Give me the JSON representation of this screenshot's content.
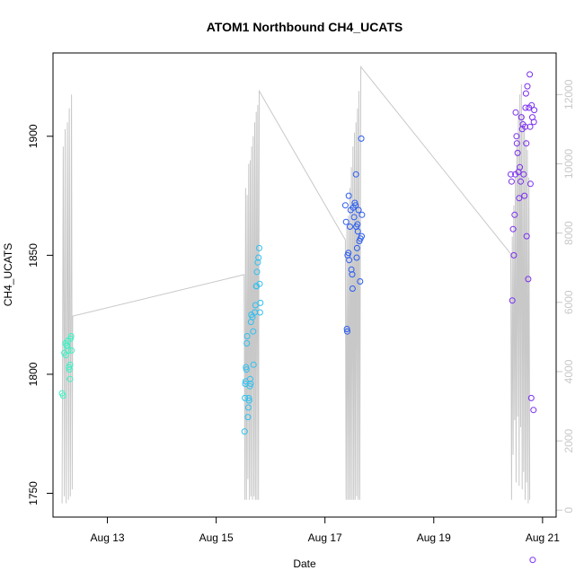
{
  "chart_data": {
    "type": "scatter",
    "title": "ATOM1 Northbound CH4_UCATS",
    "xlabel": "Date",
    "ylabel": "CH4_UCATS",
    "xlim": [
      "2016-08-12T00:00",
      "2016-08-21T06:00"
    ],
    "ylim": [
      1740,
      1935
    ],
    "x_ticks": [
      {
        "t": "2016-08-13T00:00",
        "label": "Aug 13"
      },
      {
        "t": "2016-08-15T00:00",
        "label": "Aug 15"
      },
      {
        "t": "2016-08-17T00:00",
        "label": "Aug 17"
      },
      {
        "t": "2016-08-19T00:00",
        "label": "Aug 19"
      },
      {
        "t": "2016-08-21T00:00",
        "label": "Aug 21"
      }
    ],
    "y_ticks": [
      1750,
      1800,
      1850,
      1900
    ],
    "right_axis": {
      "ylim": [
        -200,
        13200
      ],
      "ticks": [
        0,
        2000,
        4000,
        6000,
        8000,
        10000,
        12000
      ],
      "color": "#c8c8c8"
    },
    "altitude_line_color": "#c8c8c8",
    "series": [
      {
        "color": "#3ef2c4",
        "points": [
          [
            "2016-08-12T04:00",
            1792
          ],
          [
            "2016-08-12T04:30",
            1791
          ],
          [
            "2016-08-12T05:00",
            1809
          ],
          [
            "2016-08-12T05:30",
            1813
          ],
          [
            "2016-08-12T05:40",
            1808
          ],
          [
            "2016-08-12T06:00",
            1812
          ],
          [
            "2016-08-12T06:30",
            1814
          ],
          [
            "2016-08-12T06:45",
            1810
          ],
          [
            "2016-08-12T07:00",
            1803
          ],
          [
            "2016-08-12T07:15",
            1802
          ],
          [
            "2016-08-12T07:30",
            1798
          ],
          [
            "2016-08-12T07:45",
            1815
          ],
          [
            "2016-08-12T08:00",
            1816
          ],
          [
            "2016-08-12T08:10",
            1810
          ],
          [
            "2016-08-12T07:35",
            1804
          ],
          [
            "2016-08-12T06:15",
            1812
          ]
        ]
      },
      {
        "color": "#2ec0f0",
        "points": [
          [
            "2016-08-15T12:30",
            1776
          ],
          [
            "2016-08-15T12:40",
            1790
          ],
          [
            "2016-08-15T12:50",
            1796
          ],
          [
            "2016-08-15T13:00",
            1797
          ],
          [
            "2016-08-15T13:10",
            1803
          ],
          [
            "2016-08-15T13:20",
            1802
          ],
          [
            "2016-08-15T13:30",
            1813
          ],
          [
            "2016-08-15T13:40",
            1816
          ],
          [
            "2016-08-15T14:00",
            1782
          ],
          [
            "2016-08-15T14:10",
            1786
          ],
          [
            "2016-08-15T14:20",
            1790
          ],
          [
            "2016-08-15T14:30",
            1789
          ],
          [
            "2016-08-15T14:50",
            1795
          ],
          [
            "2016-08-15T15:00",
            1798
          ],
          [
            "2016-08-15T15:10",
            1796
          ],
          [
            "2016-08-15T15:20",
            1822
          ],
          [
            "2016-08-15T15:30",
            1825
          ],
          [
            "2016-08-15T16:00",
            1824
          ],
          [
            "2016-08-15T16:20",
            1818
          ],
          [
            "2016-08-15T16:30",
            1804
          ],
          [
            "2016-08-15T17:00",
            1826
          ],
          [
            "2016-08-15T17:20",
            1829
          ],
          [
            "2016-08-15T17:40",
            1837
          ],
          [
            "2016-08-15T18:00",
            1843
          ],
          [
            "2016-08-15T18:20",
            1847
          ],
          [
            "2016-08-15T18:40",
            1849
          ],
          [
            "2016-08-15T19:00",
            1853
          ],
          [
            "2016-08-15T19:10",
            1838
          ],
          [
            "2016-08-15T19:20",
            1826
          ],
          [
            "2016-08-15T19:30",
            1830
          ],
          [
            "2016-08-15T17:50",
            1837
          ]
        ]
      },
      {
        "color": "#2a5cf0",
        "points": [
          [
            "2016-08-17T09:00",
            1871
          ],
          [
            "2016-08-17T09:20",
            1864
          ],
          [
            "2016-08-17T09:40",
            1819
          ],
          [
            "2016-08-17T09:50",
            1818
          ],
          [
            "2016-08-17T10:00",
            1850
          ],
          [
            "2016-08-17T10:20",
            1851
          ],
          [
            "2016-08-17T10:30",
            1875
          ],
          [
            "2016-08-17T10:40",
            1848
          ],
          [
            "2016-08-17T11:00",
            1862
          ],
          [
            "2016-08-17T11:20",
            1869
          ],
          [
            "2016-08-17T11:40",
            1844
          ],
          [
            "2016-08-17T12:00",
            1842
          ],
          [
            "2016-08-17T12:10",
            1836
          ],
          [
            "2016-08-17T12:30",
            1870
          ],
          [
            "2016-08-17T12:50",
            1866
          ],
          [
            "2016-08-17T13:10",
            1872
          ],
          [
            "2016-08-17T13:30",
            1871
          ],
          [
            "2016-08-17T13:40",
            1884
          ],
          [
            "2016-08-17T13:50",
            1862
          ],
          [
            "2016-08-17T14:10",
            1853
          ],
          [
            "2016-08-17T14:20",
            1863
          ],
          [
            "2016-08-17T14:30",
            1860
          ],
          [
            "2016-08-17T14:50",
            1869
          ],
          [
            "2016-08-17T15:10",
            1856
          ],
          [
            "2016-08-17T15:30",
            1839
          ],
          [
            "2016-08-17T15:40",
            1857
          ],
          [
            "2016-08-17T16:00",
            1899
          ],
          [
            "2016-08-17T16:20",
            1867
          ],
          [
            "2016-08-17T16:10",
            1858
          ],
          [
            "2016-08-17T14:00",
            1849
          ]
        ]
      },
      {
        "color": "#7a2ef0",
        "points": [
          [
            "2016-08-20T10:00",
            1884
          ],
          [
            "2016-08-20T10:20",
            1881
          ],
          [
            "2016-08-20T10:40",
            1831
          ],
          [
            "2016-08-20T11:00",
            1861
          ],
          [
            "2016-08-20T11:20",
            1850
          ],
          [
            "2016-08-20T11:40",
            1867
          ],
          [
            "2016-08-20T12:00",
            1884
          ],
          [
            "2016-08-20T12:10",
            1910
          ],
          [
            "2016-08-20T12:30",
            1900
          ],
          [
            "2016-08-20T12:40",
            1897
          ],
          [
            "2016-08-20T13:00",
            1893
          ],
          [
            "2016-08-20T13:20",
            1885
          ],
          [
            "2016-08-20T13:40",
            1874
          ],
          [
            "2016-08-20T14:00",
            1887
          ],
          [
            "2016-08-20T14:20",
            1881
          ],
          [
            "2016-08-20T14:40",
            1908
          ],
          [
            "2016-08-20T15:00",
            1903
          ],
          [
            "2016-08-20T15:20",
            1905
          ],
          [
            "2016-08-20T15:40",
            1884
          ],
          [
            "2016-08-20T16:00",
            1875
          ],
          [
            "2016-08-20T16:20",
            1904
          ],
          [
            "2016-08-20T16:30",
            1912
          ],
          [
            "2016-08-20T16:40",
            1918
          ],
          [
            "2016-08-20T16:50",
            1897
          ],
          [
            "2016-08-20T17:00",
            1858
          ],
          [
            "2016-08-20T17:20",
            1921
          ],
          [
            "2016-08-20T17:40",
            1840
          ],
          [
            "2016-08-20T18:00",
            1912
          ],
          [
            "2016-08-20T18:20",
            1926
          ],
          [
            "2016-08-20T18:40",
            1880
          ],
          [
            "2016-08-20T19:00",
            1790
          ],
          [
            "2016-08-20T19:10",
            1913
          ],
          [
            "2016-08-20T19:30",
            1908
          ],
          [
            "2016-08-20T19:40",
            1722
          ],
          [
            "2016-08-20T20:00",
            1785
          ],
          [
            "2016-08-20T20:10",
            1906
          ],
          [
            "2016-08-20T20:20",
            1911
          ],
          [
            "2016-08-20T18:30",
            1904
          ]
        ]
      }
    ],
    "altitude_profile": [
      [
        "2016-08-12T04:00",
        200
      ],
      [
        "2016-08-12T04:30",
        10500
      ],
      [
        "2016-08-12T05:00",
        400
      ],
      [
        "2016-08-12T05:20",
        11000
      ],
      [
        "2016-08-12T05:50",
        200
      ],
      [
        "2016-08-12T06:20",
        11200
      ],
      [
        "2016-08-12T06:50",
        300
      ],
      [
        "2016-08-12T07:10",
        11600
      ],
      [
        "2016-08-12T07:40",
        400
      ],
      [
        "2016-08-12T08:10",
        12000
      ],
      [
        "2016-08-12T08:30",
        600
      ],
      [
        "2016-08-12T08:40",
        5600
      ],
      [
        "2016-08-15T12:20",
        6800
      ],
      [
        "2016-08-15T12:40",
        300
      ],
      [
        "2016-08-15T13:00",
        9300
      ],
      [
        "2016-08-15T13:20",
        300
      ],
      [
        "2016-08-15T13:40",
        9100
      ],
      [
        "2016-08-15T14:00",
        900
      ],
      [
        "2016-08-15T14:20",
        10000
      ],
      [
        "2016-08-15T14:40",
        300
      ],
      [
        "2016-08-15T15:00",
        10100
      ],
      [
        "2016-08-15T15:20",
        400
      ],
      [
        "2016-08-15T15:40",
        10500
      ],
      [
        "2016-08-15T16:00",
        300
      ],
      [
        "2016-08-15T16:20",
        10800
      ],
      [
        "2016-08-15T16:40",
        400
      ],
      [
        "2016-08-15T17:00",
        11200
      ],
      [
        "2016-08-15T17:20",
        300
      ],
      [
        "2016-08-15T17:40",
        11500
      ],
      [
        "2016-08-15T18:00",
        300
      ],
      [
        "2016-08-15T18:20",
        11700
      ],
      [
        "2016-08-15T18:40",
        300
      ],
      [
        "2016-08-15T19:00",
        12100
      ],
      [
        "2016-08-17T09:00",
        7800
      ],
      [
        "2016-08-17T09:20",
        300
      ],
      [
        "2016-08-17T09:40",
        8200
      ],
      [
        "2016-08-17T10:00",
        300
      ],
      [
        "2016-08-17T10:20",
        8500
      ],
      [
        "2016-08-17T10:40",
        300
      ],
      [
        "2016-08-17T11:00",
        9300
      ],
      [
        "2016-08-17T11:20",
        300
      ],
      [
        "2016-08-17T11:40",
        9900
      ],
      [
        "2016-08-17T12:00",
        300
      ],
      [
        "2016-08-17T12:20",
        10500
      ],
      [
        "2016-08-17T12:40",
        300
      ],
      [
        "2016-08-17T13:00",
        10900
      ],
      [
        "2016-08-17T13:20",
        300
      ],
      [
        "2016-08-17T13:40",
        11200
      ],
      [
        "2016-08-17T14:00",
        400
      ],
      [
        "2016-08-17T14:20",
        11600
      ],
      [
        "2016-08-17T14:40",
        300
      ],
      [
        "2016-08-17T15:00",
        12100
      ],
      [
        "2016-08-17T15:20",
        300
      ],
      [
        "2016-08-17T15:50",
        12800
      ],
      [
        "2016-08-20T10:00",
        7400
      ],
      [
        "2016-08-20T10:20",
        300
      ],
      [
        "2016-08-20T10:40",
        7900
      ],
      [
        "2016-08-20T11:00",
        1600
      ],
      [
        "2016-08-20T11:20",
        8800
      ],
      [
        "2016-08-20T11:40",
        2600
      ],
      [
        "2016-08-20T12:00",
        9600
      ],
      [
        "2016-08-20T12:20",
        800
      ],
      [
        "2016-08-20T12:40",
        10600
      ],
      [
        "2016-08-20T13:00",
        2700
      ],
      [
        "2016-08-20T13:20",
        11500
      ],
      [
        "2016-08-20T13:40",
        700
      ],
      [
        "2016-08-20T14:00",
        12000
      ],
      [
        "2016-08-20T14:20",
        2400
      ],
      [
        "2016-08-20T14:40",
        12300
      ],
      [
        "2016-08-20T15:00",
        600
      ],
      [
        "2016-08-20T15:20",
        11400
      ],
      [
        "2016-08-20T15:40",
        1100
      ],
      [
        "2016-08-20T16:00",
        11100
      ],
      [
        "2016-08-20T16:20",
        300
      ],
      [
        "2016-08-20T16:40",
        10700
      ],
      [
        "2016-08-20T17:00",
        800
      ],
      [
        "2016-08-20T17:20",
        10400
      ],
      [
        "2016-08-20T17:40",
        200
      ],
      [
        "2016-08-20T18:00",
        9600
      ],
      [
        "2016-08-20T18:20",
        300
      ]
    ]
  }
}
